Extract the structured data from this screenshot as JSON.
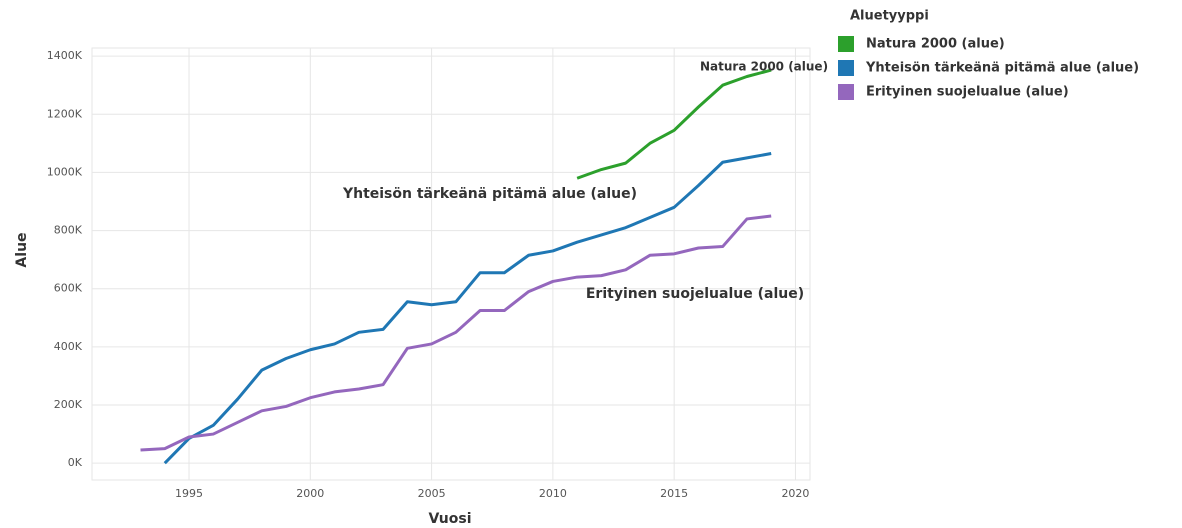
{
  "chart_data": {
    "type": "line",
    "x_label": "Vuosi",
    "y_label": "Alue",
    "legend_title": "Aluetyyppi",
    "legend": "right",
    "x": [
      1993,
      1994,
      1995,
      1996,
      1997,
      1998,
      1999,
      2000,
      2001,
      2002,
      2003,
      2004,
      2005,
      2006,
      2007,
      2008,
      2009,
      2010,
      2011,
      2012,
      2013,
      2014,
      2015,
      2016,
      2017,
      2018,
      2019
    ],
    "series": [
      {
        "name": "Natura 2000 (alue)",
        "color": "#2ca02c",
        "values": [
          null,
          null,
          null,
          null,
          null,
          null,
          null,
          null,
          null,
          null,
          null,
          null,
          null,
          null,
          null,
          null,
          null,
          null,
          980000,
          1010000,
          1032000,
          1100000,
          1145000,
          1225000,
          1300000,
          1330000,
          1352000
        ]
      },
      {
        "name": "Yhteisön tärkeänä pitämä alue (alue)",
        "color": "#1f77b4",
        "values": [
          null,
          0,
          85000,
          130000,
          220000,
          320000,
          360000,
          390000,
          410000,
          450000,
          460000,
          555000,
          545000,
          555000,
          655000,
          655000,
          715000,
          730000,
          760000,
          785000,
          810000,
          845000,
          880000,
          955000,
          1035000,
          1050000,
          1065000
        ]
      },
      {
        "name": "Erityinen suojelualue (alue)",
        "color": "#9467bd",
        "values": [
          45000,
          50000,
          90000,
          100000,
          140000,
          180000,
          195000,
          225000,
          245000,
          255000,
          270000,
          395000,
          410000,
          450000,
          525000,
          525000,
          590000,
          625000,
          640000,
          645000,
          665000,
          715000,
          720000,
          740000,
          745000,
          840000,
          850000
        ]
      }
    ],
    "annotations": [
      "Natura 2000 (alue)",
      "Yhteisön tärkeänä pitämä alue (alue)",
      "Erityinen suojelualue (alue)"
    ],
    "xlim": [
      1991,
      2020.6
    ],
    "xticks": [
      1995,
      2000,
      2005,
      2010,
      2015,
      2020
    ],
    "ylim": [
      -58000,
      1428000
    ],
    "yticks": [
      {
        "value": 0,
        "label": "0K"
      },
      {
        "value": 200000,
        "label": "200K"
      },
      {
        "value": 400000,
        "label": "400K"
      },
      {
        "value": 600000,
        "label": "600K"
      },
      {
        "value": 800000,
        "label": "800K"
      },
      {
        "value": 1000000,
        "label": "1000K"
      },
      {
        "value": 1200000,
        "label": "1200K"
      },
      {
        "value": 1400000,
        "label": "1400K"
      }
    ],
    "grid": true
  }
}
